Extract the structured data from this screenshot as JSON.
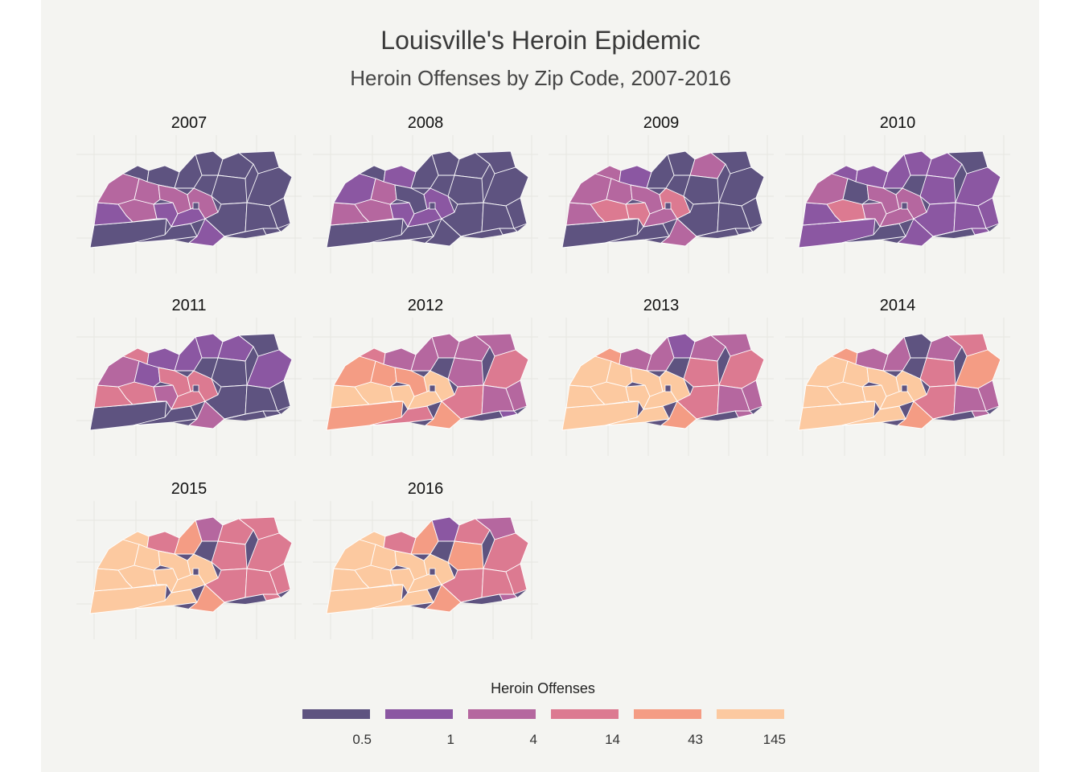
{
  "title": "Louisville's Heroin Epidemic",
  "subtitle": "Heroin Offenses by Zip Code, 2007-2016",
  "legend": {
    "title": "Heroin Offenses",
    "levels": [
      {
        "label": "0.5",
        "color": "#5e5380"
      },
      {
        "label": "1",
        "color": "#8b57a2"
      },
      {
        "label": "4",
        "color": "#b5679f"
      },
      {
        "label": "14",
        "color": "#dc7a91"
      },
      {
        "label": "43",
        "color": "#f49c84"
      },
      {
        "label": "145",
        "color": "#fcc9a0"
      }
    ]
  },
  "facets": [
    {
      "year": "2007",
      "levels": [
        0,
        0,
        1,
        2,
        2,
        0,
        1,
        0,
        0,
        0,
        0,
        0,
        2,
        2,
        1,
        2,
        0,
        0,
        0,
        1,
        0,
        0,
        0
      ]
    },
    {
      "year": "2008",
      "levels": [
        0,
        0,
        2,
        2,
        1,
        0,
        1,
        0,
        0,
        1,
        0,
        0,
        2,
        0,
        1,
        1,
        0,
        0,
        0,
        0,
        0,
        0,
        0
      ]
    },
    {
      "year": "2009",
      "levels": [
        0,
        0,
        2,
        3,
        2,
        2,
        3,
        0,
        2,
        1,
        0,
        0,
        2,
        2,
        2,
        3,
        0,
        0,
        0,
        2,
        0,
        0,
        0
      ]
    },
    {
      "year": "2010",
      "levels": [
        1,
        0,
        1,
        3,
        2,
        1,
        2,
        1,
        1,
        1,
        1,
        0,
        0,
        2,
        2,
        2,
        1,
        1,
        1,
        1,
        1,
        1,
        1
      ]
    },
    {
      "year": "2011",
      "levels": [
        0,
        0,
        3,
        3,
        2,
        3,
        2,
        1,
        1,
        1,
        1,
        0,
        1,
        3,
        3,
        3,
        0,
        0,
        1,
        2,
        0,
        0,
        0
      ]
    },
    {
      "year": "2012",
      "levels": [
        4,
        3,
        5,
        5,
        4,
        3,
        5,
        2,
        2,
        2,
        2,
        2,
        4,
        4,
        5,
        5,
        2,
        3,
        3,
        4,
        2,
        2,
        1
      ]
    },
    {
      "year": "2013",
      "levels": [
        5,
        5,
        5,
        5,
        5,
        4,
        5,
        1,
        2,
        2,
        2,
        2,
        5,
        5,
        5,
        5,
        3,
        3,
        3,
        4,
        2,
        2,
        2
      ]
    },
    {
      "year": "2014",
      "levels": [
        5,
        5,
        5,
        5,
        5,
        4,
        5,
        0,
        2,
        2,
        2,
        3,
        5,
        5,
        5,
        5,
        3,
        3,
        4,
        4,
        2,
        2,
        2
      ]
    },
    {
      "year": "2015",
      "levels": [
        5,
        5,
        5,
        5,
        5,
        5,
        5,
        2,
        3,
        3,
        4,
        3,
        5,
        5,
        5,
        5,
        3,
        3,
        3,
        4,
        3,
        3,
        3
      ]
    },
    {
      "year": "2016",
      "levels": [
        5,
        5,
        5,
        5,
        5,
        5,
        5,
        1,
        3,
        3,
        4,
        2,
        5,
        5,
        5,
        5,
        4,
        3,
        3,
        4,
        3,
        3,
        2
      ]
    }
  ]
}
